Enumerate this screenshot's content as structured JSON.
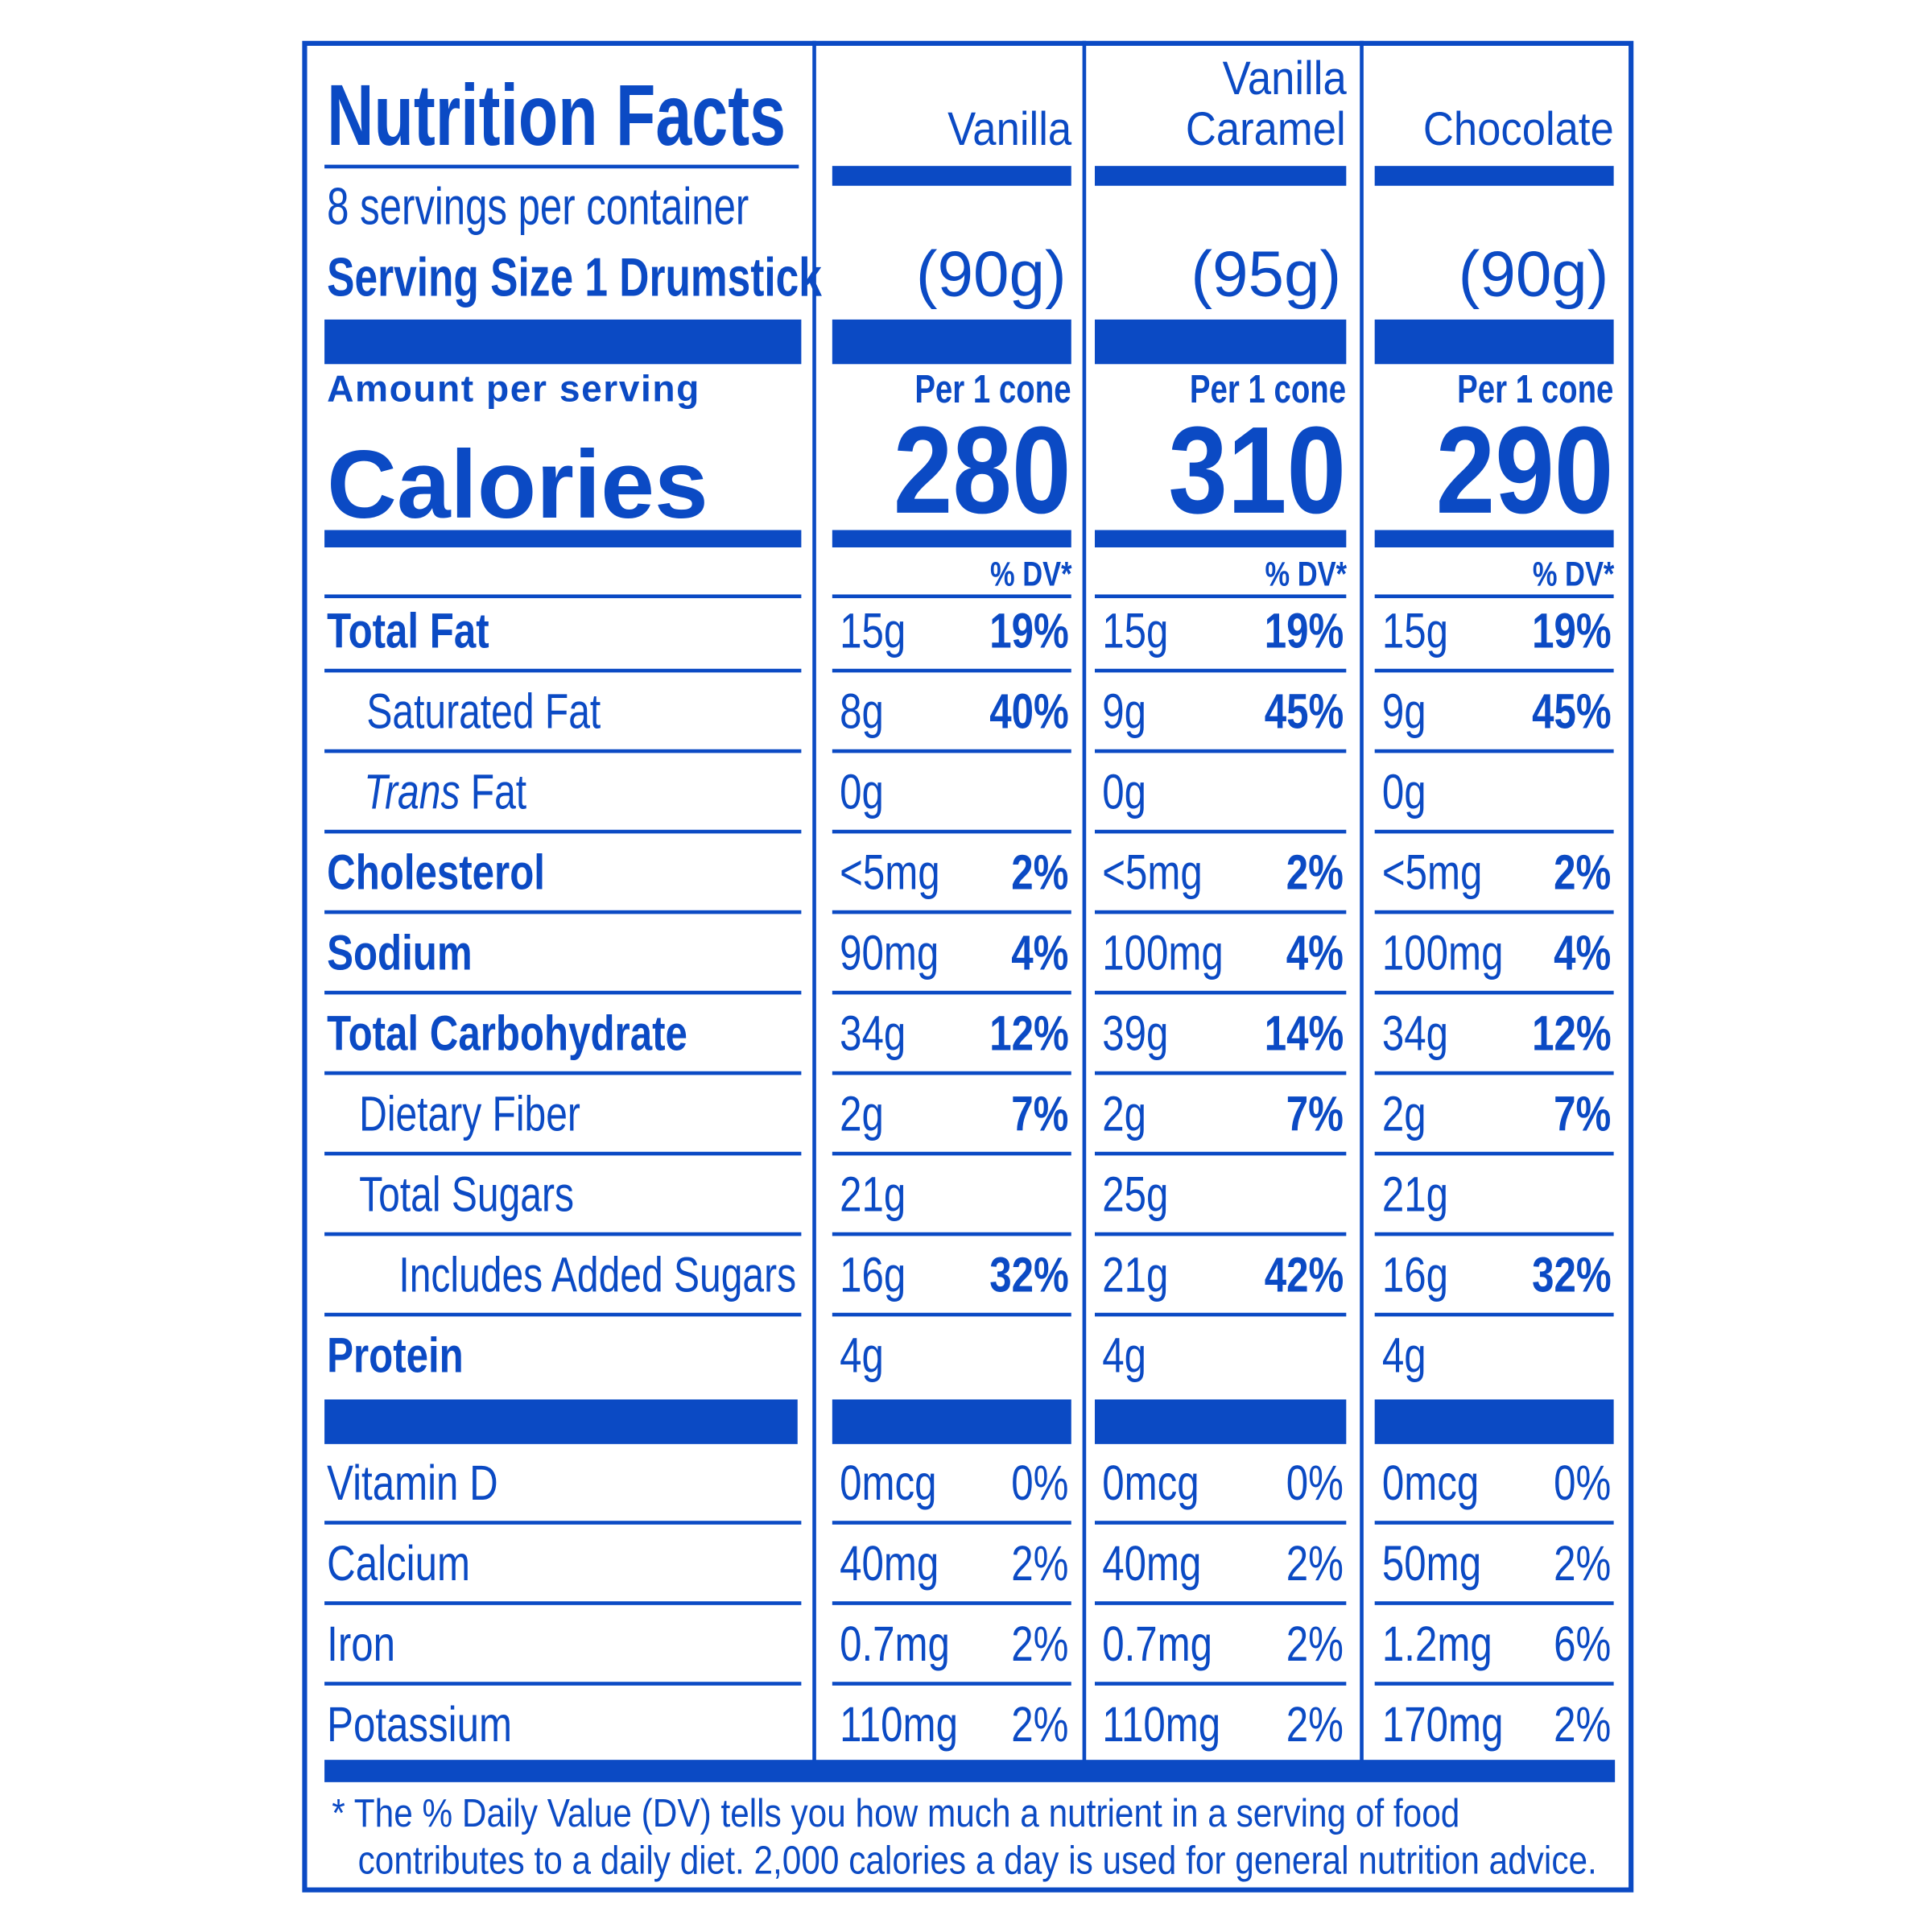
{
  "header": {
    "title": "Nutrition Facts",
    "servings_per_container": "8 servings per container",
    "serving_size": "Serving Size 1 Drumstick",
    "amount_per_serving": "Amount per serving",
    "calories_label": "Calories",
    "dv_header": "% DV*"
  },
  "products": [
    {
      "name_line1": "",
      "name_line2": "Vanilla",
      "serving_weight": "(90g)",
      "per_label": "Per 1 cone",
      "calories": "280"
    },
    {
      "name_line1": "Vanilla",
      "name_line2": "Caramel",
      "serving_weight": "(95g)",
      "per_label": "Per 1 cone",
      "calories": "310"
    },
    {
      "name_line1": "",
      "name_line2": "Chocolate",
      "serving_weight": "(90g)",
      "per_label": "Per 1 cone",
      "calories": "290"
    }
  ],
  "nutrients": [
    {
      "label": "Total Fat",
      "values": [
        {
          "amount": "15g",
          "dv": "19%"
        },
        {
          "amount": "15g",
          "dv": "19%"
        },
        {
          "amount": "15g",
          "dv": "19%"
        }
      ]
    },
    {
      "label": "Saturated Fat",
      "values": [
        {
          "amount": "8g",
          "dv": "40%"
        },
        {
          "amount": "9g",
          "dv": "45%"
        },
        {
          "amount": "9g",
          "dv": "45%"
        }
      ]
    },
    {
      "label_italic": "Trans",
      "label": " Fat",
      "values": [
        {
          "amount": "0g",
          "dv": ""
        },
        {
          "amount": "0g",
          "dv": ""
        },
        {
          "amount": "0g",
          "dv": ""
        }
      ]
    },
    {
      "label": "Cholesterol",
      "values": [
        {
          "amount": "<5mg",
          "dv": "2%"
        },
        {
          "amount": "<5mg",
          "dv": "2%"
        },
        {
          "amount": "<5mg",
          "dv": "2%"
        }
      ]
    },
    {
      "label": "Sodium",
      "values": [
        {
          "amount": "90mg",
          "dv": "4%"
        },
        {
          "amount": "100mg",
          "dv": "4%"
        },
        {
          "amount": "100mg",
          "dv": "4%"
        }
      ]
    },
    {
      "label": "Total Carbohydrate",
      "values": [
        {
          "amount": "34g",
          "dv": "12%"
        },
        {
          "amount": "39g",
          "dv": "14%"
        },
        {
          "amount": "34g",
          "dv": "12%"
        }
      ]
    },
    {
      "label": "Dietary Fiber",
      "values": [
        {
          "amount": "2g",
          "dv": "7%"
        },
        {
          "amount": "2g",
          "dv": "7%"
        },
        {
          "amount": "2g",
          "dv": "7%"
        }
      ]
    },
    {
      "label": "Total Sugars",
      "values": [
        {
          "amount": "21g",
          "dv": ""
        },
        {
          "amount": "25g",
          "dv": ""
        },
        {
          "amount": "21g",
          "dv": ""
        }
      ]
    },
    {
      "label": "Includes Added Sugars",
      "values": [
        {
          "amount": "16g",
          "dv": "32%"
        },
        {
          "amount": "21g",
          "dv": "42%"
        },
        {
          "amount": "16g",
          "dv": "32%"
        }
      ]
    },
    {
      "label": "Protein",
      "values": [
        {
          "amount": "4g",
          "dv": ""
        },
        {
          "amount": "4g",
          "dv": ""
        },
        {
          "amount": "4g",
          "dv": ""
        }
      ]
    }
  ],
  "micronutrients": [
    {
      "label": "Vitamin D",
      "values": [
        {
          "amount": "0mcg",
          "dv": "0%"
        },
        {
          "amount": "0mcg",
          "dv": "0%"
        },
        {
          "amount": "0mcg",
          "dv": "0%"
        }
      ]
    },
    {
      "label": "Calcium",
      "values": [
        {
          "amount": "40mg",
          "dv": "2%"
        },
        {
          "amount": "40mg",
          "dv": "2%"
        },
        {
          "amount": "50mg",
          "dv": "2%"
        }
      ]
    },
    {
      "label": "Iron",
      "values": [
        {
          "amount": "0.7mg",
          "dv": "2%"
        },
        {
          "amount": "0.7mg",
          "dv": "2%"
        },
        {
          "amount": "1.2mg",
          "dv": "6%"
        }
      ]
    },
    {
      "label": "Potassium",
      "values": [
        {
          "amount": "110mg",
          "dv": "2%"
        },
        {
          "amount": "110mg",
          "dv": "2%"
        },
        {
          "amount": "170mg",
          "dv": "2%"
        }
      ]
    }
  ],
  "footnote": {
    "line1": "* The % Daily Value (DV) tells you how much a nutrient in a serving of food",
    "line2": "contributes to a daily diet. 2,000 calories a day is used for general nutrition advice."
  },
  "colors": {
    "ink": "#0b4ac4",
    "background": "#ffffff"
  }
}
